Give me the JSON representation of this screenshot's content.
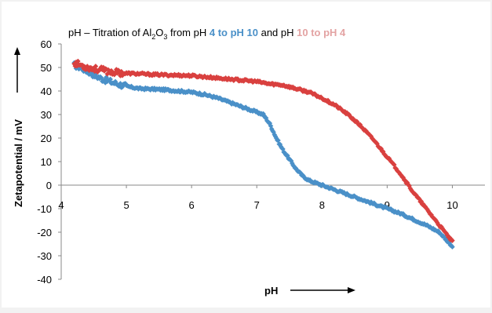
{
  "chart_data": {
    "type": "scatter",
    "title": {
      "prefix": "pH – Titration of Al",
      "sub1": "2",
      "mid": "O",
      "sub2": "3",
      "after": " from pH ",
      "part_blue": "4 to pH 10",
      "and_text": " and pH ",
      "part_red": "10  to pH 4"
    },
    "xlabel": "pH",
    "ylabel": "Zetapotential / mV",
    "xlim": [
      4,
      10.5
    ],
    "ylim": [
      -40,
      60
    ],
    "x_ticks": [
      4,
      5,
      6,
      7,
      8,
      9,
      10
    ],
    "y_ticks": [
      -40,
      -30,
      -20,
      -10,
      0,
      10,
      20,
      30,
      40,
      50,
      60
    ],
    "grid": false,
    "legend": "none",
    "colors": {
      "blue": "#4a90c8",
      "red": "#d9403f",
      "title_blue": "#4a90c8",
      "title_red": "#e3a3a3",
      "axis": "#888888",
      "text": "#000000",
      "background": "#f2f2f2",
      "plot_background": "#ffffff"
    },
    "series": [
      {
        "color_key": "blue",
        "direction": "pH 4 to pH 10",
        "points": [
          [
            4.2,
            51
          ],
          [
            4.3,
            50
          ],
          [
            4.4,
            48.5
          ],
          [
            4.5,
            47
          ],
          [
            4.6,
            45.5
          ],
          [
            4.8,
            43.5
          ],
          [
            5.0,
            42
          ],
          [
            5.2,
            41
          ],
          [
            5.4,
            40.8
          ],
          [
            5.6,
            40.5
          ],
          [
            5.8,
            40
          ],
          [
            6.0,
            39.5
          ],
          [
            6.2,
            38.5
          ],
          [
            6.4,
            37
          ],
          [
            6.6,
            35
          ],
          [
            6.8,
            33
          ],
          [
            7.0,
            31
          ],
          [
            7.1,
            30
          ],
          [
            7.2,
            26
          ],
          [
            7.3,
            20
          ],
          [
            7.4,
            15
          ],
          [
            7.5,
            11
          ],
          [
            7.6,
            7
          ],
          [
            7.7,
            4
          ],
          [
            7.8,
            2
          ],
          [
            8.0,
            0
          ],
          [
            8.2,
            -2
          ],
          [
            8.4,
            -4
          ],
          [
            8.6,
            -6
          ],
          [
            8.8,
            -8
          ],
          [
            9.0,
            -10
          ],
          [
            9.2,
            -12
          ],
          [
            9.4,
            -14.5
          ],
          [
            9.6,
            -17
          ],
          [
            9.8,
            -20
          ],
          [
            10.0,
            -26
          ]
        ]
      },
      {
        "color_key": "red",
        "direction": "pH 10 to pH 4",
        "points": [
          [
            4.2,
            52
          ],
          [
            4.3,
            51
          ],
          [
            4.4,
            50
          ],
          [
            4.5,
            49.5
          ],
          [
            4.6,
            49
          ],
          [
            4.8,
            48
          ],
          [
            5.0,
            47.5
          ],
          [
            5.2,
            47.3
          ],
          [
            5.4,
            47
          ],
          [
            5.6,
            46.8
          ],
          [
            5.8,
            46.7
          ],
          [
            6.0,
            46.5
          ],
          [
            6.2,
            46
          ],
          [
            6.4,
            45.5
          ],
          [
            6.6,
            45
          ],
          [
            6.8,
            44.5
          ],
          [
            7.0,
            44
          ],
          [
            7.2,
            43
          ],
          [
            7.4,
            42.5
          ],
          [
            7.6,
            41
          ],
          [
            7.8,
            39.5
          ],
          [
            8.0,
            37
          ],
          [
            8.2,
            34
          ],
          [
            8.4,
            30
          ],
          [
            8.6,
            25
          ],
          [
            8.8,
            19
          ],
          [
            9.0,
            12
          ],
          [
            9.2,
            5
          ],
          [
            9.4,
            -3
          ],
          [
            9.6,
            -10
          ],
          [
            9.8,
            -17
          ],
          [
            10.0,
            -24
          ]
        ]
      }
    ]
  }
}
